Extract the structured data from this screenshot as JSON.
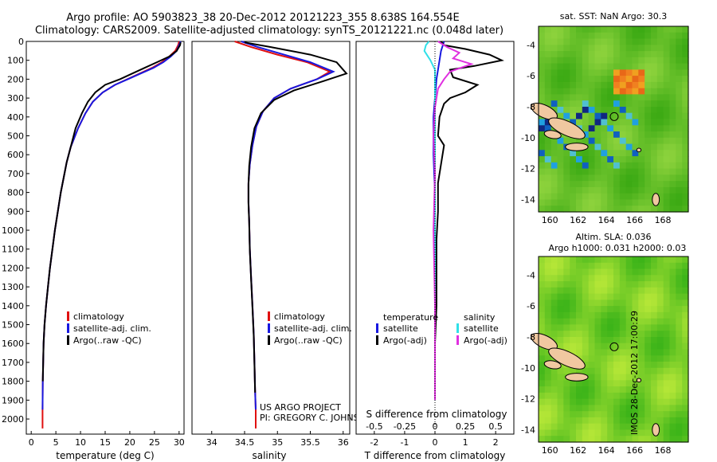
{
  "header": {
    "line1": "Argo profile: AO 5903823_38 20-Dec-2012 20121223_355 8.638S 164.554E",
    "line2": "Climatology: CARS2009. Satellite-adjusted climatology: synTS_20121221.nc (0.048d later)"
  },
  "colors": {
    "climatology": "#e01010",
    "satellite": "#1818e0",
    "argo": "#000000",
    "satellite_s": "#30e0e8",
    "argo_s": "#e030e0"
  },
  "chart_data": [
    {
      "type": "line",
      "id": "temperature",
      "xlabel": "temperature (deg C)",
      "xlim": [
        -1,
        31
      ],
      "xticks": [
        0,
        5,
        10,
        15,
        20,
        25,
        30
      ],
      "ylim": [
        2080,
        0
      ],
      "yticks": [
        0,
        100,
        200,
        300,
        400,
        500,
        600,
        700,
        800,
        900,
        1000,
        1100,
        1200,
        1300,
        1400,
        1500,
        1600,
        1700,
        1800,
        1900,
        2000
      ],
      "legend": [
        "climatology",
        "satellite-adj. clim.",
        "Argo(..raw -QC)"
      ],
      "series": [
        {
          "name": "climatology",
          "color_key": "climatology",
          "x": [
            30.0,
            29.8,
            29.2,
            28.0,
            26.5,
            24.5,
            22.0,
            19.5,
            17.0,
            14.5,
            12.5,
            11.0,
            9.5,
            8.0,
            7.2,
            6.6,
            6.0,
            5.4,
            4.8,
            4.3,
            3.8,
            3.4,
            3.0,
            2.7,
            2.5,
            2.35,
            2.3,
            2.3
          ],
          "y": [
            0,
            20,
            50,
            80,
            110,
            140,
            170,
            200,
            230,
            270,
            320,
            380,
            460,
            560,
            640,
            720,
            800,
            900,
            1000,
            1100,
            1200,
            1300,
            1400,
            1500,
            1600,
            1800,
            1950,
            2050
          ]
        },
        {
          "name": "satellite-adj. clim.",
          "color_key": "satellite",
          "x": [
            30.3,
            30.0,
            29.5,
            28.3,
            26.8,
            24.8,
            22.2,
            19.6,
            17.0,
            14.5,
            12.5,
            11.0,
            9.5,
            8.0,
            7.2,
            6.6,
            6.0,
            5.4,
            4.8,
            4.3,
            3.8,
            3.4,
            3.0,
            2.7,
            2.5,
            2.35,
            2.3
          ],
          "y": [
            0,
            20,
            50,
            80,
            110,
            140,
            170,
            200,
            230,
            270,
            320,
            380,
            460,
            560,
            640,
            720,
            800,
            900,
            1000,
            1100,
            1200,
            1300,
            1400,
            1500,
            1600,
            1800,
            1950
          ]
        },
        {
          "name": "Argo(..raw -QC)",
          "color_key": "argo",
          "x": [
            30.3,
            30.2,
            29.5,
            28.0,
            25.5,
            23.0,
            20.5,
            18.0,
            15.0,
            13.0,
            11.5,
            10.3,
            9.0,
            8.0,
            7.2,
            6.6,
            6.0,
            5.4,
            4.8,
            4.3,
            3.8,
            3.4,
            3.0,
            2.7,
            2.5,
            2.35
          ],
          "y": [
            5,
            20,
            50,
            80,
            110,
            140,
            170,
            200,
            230,
            270,
            320,
            380,
            460,
            560,
            640,
            720,
            800,
            900,
            1000,
            1100,
            1200,
            1300,
            1400,
            1500,
            1600,
            1800
          ]
        }
      ]
    },
    {
      "type": "line",
      "id": "salinity",
      "xlabel": "salinity",
      "xlim": [
        33.7,
        36.1
      ],
      "xticks": [
        34,
        34.5,
        35,
        35.5,
        36
      ],
      "xtick_labels": [
        "34",
        "34.5",
        "35",
        "35.5",
        "36"
      ],
      "ylim": [
        2080,
        0
      ],
      "legend": [
        "climatology",
        "satellite-adj. clim.",
        "Argo(..raw -QC)"
      ],
      "series": [
        {
          "name": "climatology",
          "color_key": "climatology",
          "x": [
            34.35,
            34.6,
            35.0,
            35.45,
            35.8,
            35.6,
            35.2,
            34.95,
            34.78,
            34.68,
            34.62,
            34.58,
            34.56,
            34.56,
            34.57,
            34.58,
            34.6,
            34.62,
            34.64,
            34.65,
            34.66,
            34.67,
            34.67
          ],
          "y": [
            0,
            30,
            70,
            110,
            160,
            200,
            250,
            300,
            370,
            450,
            550,
            650,
            750,
            850,
            950,
            1100,
            1250,
            1400,
            1550,
            1700,
            1850,
            1950,
            2050
          ]
        },
        {
          "name": "satellite-adj. clim.",
          "color_key": "satellite",
          "x": [
            34.45,
            34.7,
            35.1,
            35.5,
            35.85,
            35.6,
            35.2,
            34.95,
            34.78,
            34.68,
            34.62,
            34.58,
            34.56,
            34.56,
            34.57,
            34.58,
            34.6,
            34.62,
            34.64,
            34.65,
            34.66,
            34.67
          ],
          "y": [
            0,
            30,
            70,
            110,
            160,
            200,
            250,
            300,
            370,
            450,
            550,
            650,
            750,
            850,
            950,
            1100,
            1250,
            1400,
            1550,
            1700,
            1850,
            1950
          ]
        },
        {
          "name": "Argo(..raw -QC)",
          "color_key": "argo",
          "x": [
            34.5,
            34.9,
            35.5,
            35.9,
            36.05,
            35.7,
            35.25,
            34.95,
            34.75,
            34.65,
            34.6,
            34.57,
            34.56,
            34.56,
            34.57,
            34.58,
            34.6,
            34.62,
            34.64,
            34.65,
            34.66
          ],
          "y": [
            5,
            30,
            70,
            110,
            170,
            210,
            260,
            310,
            380,
            460,
            560,
            660,
            760,
            860,
            960,
            1110,
            1260,
            1410,
            1560,
            1710,
            1860
          ]
        }
      ]
    },
    {
      "type": "line",
      "id": "difference",
      "xlabel": "T difference from climatology",
      "xlabel2": "S difference from climatology",
      "xlim": [
        -2.6,
        2.6
      ],
      "xticks": [
        -2,
        -1,
        0,
        1,
        2
      ],
      "xticks_s": [
        -0.5,
        -0.25,
        0,
        0.25,
        0.5
      ],
      "xtick_labels_s": [
        "-0.5",
        "-0.25",
        "0",
        "0.25",
        "0.5"
      ],
      "ylim": [
        2080,
        0
      ],
      "legend_t_title": "temperature",
      "legend_s_title": "salinity",
      "legend_t": [
        "satellite",
        "Argo(-adj)"
      ],
      "legend_s": [
        "satellite",
        "Argo(-adj)"
      ],
      "series": [
        {
          "name": "T satellite",
          "color_key": "satellite",
          "x": [
            0.3,
            0.2,
            0.15,
            0.1,
            0.05,
            0.0,
            -0.05,
            -0.05,
            0.0,
            0.0,
            0.0,
            0.0,
            0.0
          ],
          "y": [
            0,
            50,
            100,
            150,
            200,
            300,
            400,
            600,
            800,
            1000,
            1300,
            1600,
            1900
          ]
        },
        {
          "name": "T Argo",
          "color_key": "argo",
          "x": [
            0.2,
            0.3,
            1.0,
            1.8,
            2.2,
            1.3,
            0.5,
            0.6,
            1.4,
            1.0,
            0.5,
            0.3,
            0.15,
            0.1,
            0.3,
            0.2,
            0.1,
            0.1,
            0.05,
            0.05,
            0.05,
            0.0,
            0.0
          ],
          "y": [
            0,
            20,
            40,
            70,
            100,
            130,
            150,
            190,
            230,
            270,
            300,
            330,
            400,
            500,
            550,
            650,
            750,
            900,
            1050,
            1200,
            1400,
            1600,
            1900
          ]
        },
        {
          "name": "S satellite",
          "color_key": "satellite_s",
          "x": [
            -0.2,
            -0.3,
            -0.35,
            -0.15,
            0.0,
            0.0,
            0.0,
            0.0,
            0.0,
            0.0,
            0.0
          ],
          "y": [
            0,
            20,
            50,
            100,
            150,
            250,
            400,
            600,
            900,
            1300,
            1900
          ]
        },
        {
          "name": "S Argo",
          "color_key": "argo_s",
          "x": [
            0.1,
            0.4,
            0.8,
            0.6,
            1.2,
            0.5,
            0.3,
            0.1,
            0.0,
            -0.05,
            0.0,
            -0.05,
            0.0,
            0.0
          ],
          "y": [
            0,
            30,
            60,
            90,
            120,
            160,
            200,
            250,
            350,
            500,
            700,
            1000,
            1400,
            1900
          ]
        }
      ]
    }
  ],
  "annotations": {
    "project": "US ARGO PROJECT",
    "pi": "PI: GREGORY C. JOHNSON"
  },
  "map_top": {
    "title": "sat. SST: NaN Argo: 30.3",
    "xticks": [
      160,
      162,
      164,
      166,
      168
    ],
    "yticks": [
      -4,
      -6,
      -8,
      -10,
      -12,
      -14
    ],
    "xlim": [
      159.2,
      169.8
    ],
    "ylim": [
      -14.8,
      -2.8
    ],
    "argo_position": [
      164.554,
      -8.638
    ]
  },
  "map_bottom": {
    "title1": "Altim. SLA: 0.036",
    "title2": "Argo h1000: 0.031 h2000: 0.03",
    "xticks": [
      160,
      162,
      164,
      166,
      168
    ],
    "yticks": [
      -4,
      -6,
      -8,
      -10,
      -12,
      -14
    ],
    "xlim": [
      159.2,
      169.8
    ],
    "ylim": [
      -14.8,
      -2.8
    ],
    "argo_position": [
      164.554,
      -8.638
    ]
  },
  "footer": {
    "stamp": "IMOS 28-Dec-2012 17:00:29"
  }
}
